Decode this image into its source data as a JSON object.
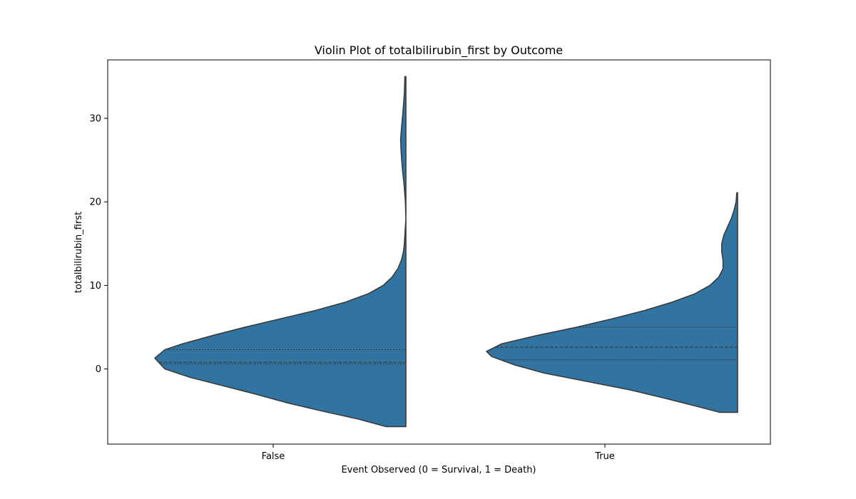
{
  "chart_data": {
    "type": "violin",
    "title": "Violin Plot of totalbilirubin_first by Outcome",
    "xlabel": "Event Observed (0 = Survival, 1 = Death)",
    "ylabel": "totalbilirubin_first",
    "categories": [
      "False",
      "True"
    ],
    "yticks": [
      0,
      10,
      20,
      30
    ],
    "ylim": [
      -9,
      37
    ],
    "grid": false,
    "legend": "none",
    "color": "#3274a1",
    "violins": [
      {
        "category": "False",
        "ymin": -6.9,
        "ymax": 35,
        "quartiles": [
          0.6,
          0.8,
          2.3
        ],
        "density": [
          [
            -6.9,
            0.08
          ],
          [
            -6,
            0.19
          ],
          [
            -5,
            0.34
          ],
          [
            -4,
            0.48
          ],
          [
            -3,
            0.6
          ],
          [
            -2,
            0.73
          ],
          [
            -1,
            0.86
          ],
          [
            0,
            0.96
          ],
          [
            1.3,
            1.0
          ],
          [
            2.3,
            0.96
          ],
          [
            3,
            0.89
          ],
          [
            4,
            0.77
          ],
          [
            5,
            0.64
          ],
          [
            6,
            0.5
          ],
          [
            7,
            0.36
          ],
          [
            8,
            0.24
          ],
          [
            9,
            0.15
          ],
          [
            10,
            0.09
          ],
          [
            11,
            0.055
          ],
          [
            12,
            0.032
          ],
          [
            13,
            0.018
          ],
          [
            14,
            0.01
          ],
          [
            15,
            0.006
          ],
          [
            17,
            0.002
          ],
          [
            18,
            0.0
          ],
          [
            20,
            0.002
          ],
          [
            22,
            0.007
          ],
          [
            24,
            0.014
          ],
          [
            26,
            0.019
          ],
          [
            27.5,
            0.021
          ],
          [
            29,
            0.017
          ],
          [
            31,
            0.011
          ],
          [
            33,
            0.006
          ],
          [
            35,
            0.004
          ]
        ]
      },
      {
        "category": "True",
        "ymin": -5.2,
        "ymax": 21.1,
        "quartiles": [
          1.1,
          2.6,
          5.0
        ],
        "density": [
          [
            -5.2,
            0.07
          ],
          [
            -4.5,
            0.16
          ],
          [
            -3.5,
            0.29
          ],
          [
            -2.5,
            0.43
          ],
          [
            -1.5,
            0.6
          ],
          [
            -0.5,
            0.77
          ],
          [
            0.5,
            0.89
          ],
          [
            1.5,
            0.98
          ],
          [
            2.1,
            1.0
          ],
          [
            3,
            0.94
          ],
          [
            4,
            0.8
          ],
          [
            5,
            0.64
          ],
          [
            6,
            0.5
          ],
          [
            7,
            0.37
          ],
          [
            8,
            0.26
          ],
          [
            9,
            0.17
          ],
          [
            10,
            0.11
          ],
          [
            11,
            0.075
          ],
          [
            12,
            0.058
          ],
          [
            13,
            0.058
          ],
          [
            14,
            0.063
          ],
          [
            15,
            0.063
          ],
          [
            16,
            0.055
          ],
          [
            17,
            0.04
          ],
          [
            18,
            0.025
          ],
          [
            19,
            0.014
          ],
          [
            20,
            0.006
          ],
          [
            21.1,
            0.003
          ]
        ]
      }
    ]
  }
}
